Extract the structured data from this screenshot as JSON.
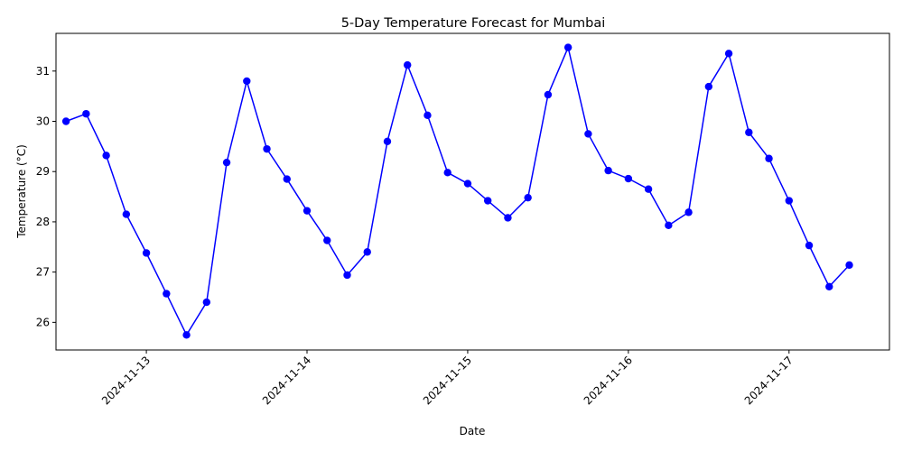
{
  "chart_data": {
    "type": "line",
    "title": "5-Day Temperature Forecast for Mumbai",
    "xlabel": "Date",
    "ylabel": "Temperature (°C)",
    "x_tick_labels": [
      "2024-11-13",
      "2024-11-14",
      "2024-11-15",
      "2024-11-16",
      "2024-11-17"
    ],
    "y_ticks": [
      26,
      27,
      28,
      29,
      30,
      31
    ],
    "xlim": [
      "2024-11-12 10:30",
      "2024-11-17 15:00"
    ],
    "ylim": [
      25.45,
      31.75
    ],
    "grid": false,
    "legend": "none",
    "series": [
      {
        "color": "#0000ff",
        "marker": "circle",
        "x": [
          "2024-11-12 12:00",
          "2024-11-12 15:00",
          "2024-11-12 18:00",
          "2024-11-12 21:00",
          "2024-11-13 00:00",
          "2024-11-13 03:00",
          "2024-11-13 06:00",
          "2024-11-13 09:00",
          "2024-11-13 12:00",
          "2024-11-13 15:00",
          "2024-11-13 18:00",
          "2024-11-13 21:00",
          "2024-11-14 00:00",
          "2024-11-14 03:00",
          "2024-11-14 06:00",
          "2024-11-14 09:00",
          "2024-11-14 12:00",
          "2024-11-14 15:00",
          "2024-11-14 18:00",
          "2024-11-14 21:00",
          "2024-11-15 00:00",
          "2024-11-15 03:00",
          "2024-11-15 06:00",
          "2024-11-15 09:00",
          "2024-11-15 12:00",
          "2024-11-15 15:00",
          "2024-11-15 18:00",
          "2024-11-15 21:00",
          "2024-11-16 00:00",
          "2024-11-16 03:00",
          "2024-11-16 06:00",
          "2024-11-16 09:00",
          "2024-11-16 12:00",
          "2024-11-16 15:00",
          "2024-11-16 18:00",
          "2024-11-16 21:00",
          "2024-11-17 00:00",
          "2024-11-17 03:00",
          "2024-11-17 06:00",
          "2024-11-17 09:00"
        ],
        "values": [
          30.0,
          30.15,
          29.32,
          28.15,
          27.38,
          26.57,
          25.75,
          26.4,
          29.18,
          30.8,
          29.45,
          28.85,
          28.22,
          27.63,
          26.94,
          27.4,
          29.6,
          31.12,
          30.12,
          28.98,
          28.76,
          28.42,
          28.08,
          28.48,
          30.53,
          31.47,
          29.75,
          29.02,
          28.86,
          28.65,
          27.93,
          28.19,
          30.69,
          31.35,
          29.78,
          29.26,
          28.42,
          27.53,
          26.71,
          27.14
        ]
      }
    ]
  }
}
